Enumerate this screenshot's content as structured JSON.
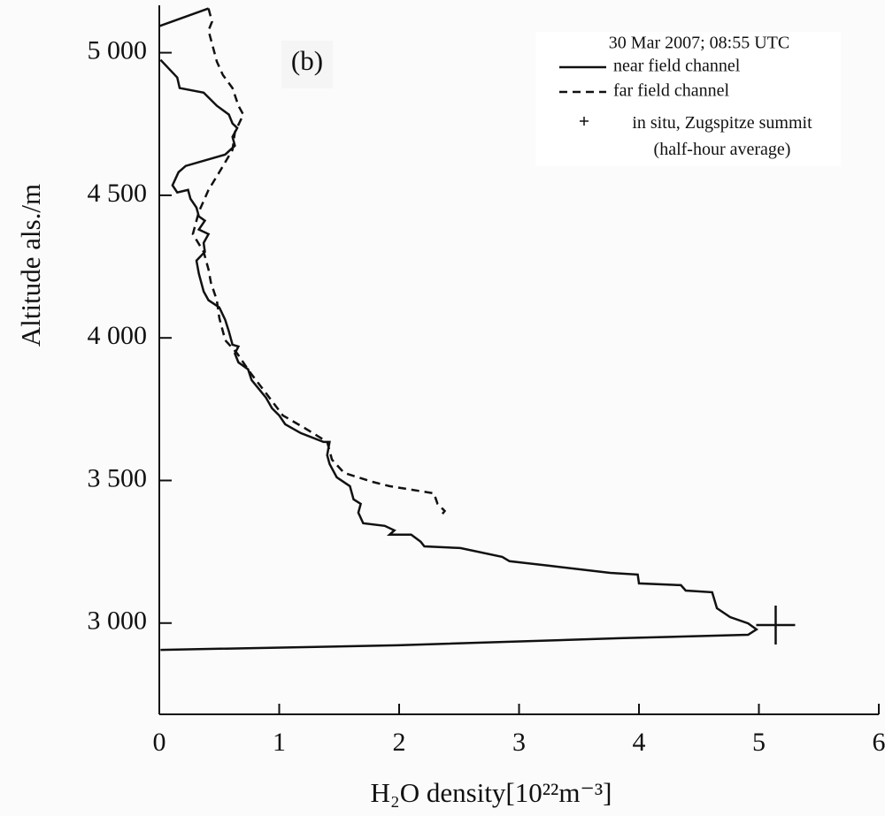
{
  "chart_data": {
    "type": "line",
    "annotation": "(b)",
    "x_label": "H₂O density[10²²m⁻³]",
    "y_label": "Altitude als./m",
    "legend_title": "30 Mar 2007; 08:55 UTC",
    "legend": "top-right",
    "xlim": [
      0,
      6
    ],
    "xticks": [
      0,
      1,
      2,
      3,
      4,
      5,
      6
    ],
    "ylim": [
      2680,
      5160
    ],
    "yticks": [
      {
        "value": 3000,
        "label": "3 000"
      },
      {
        "value": 3500,
        "label": "3 500"
      },
      {
        "value": 4000,
        "label": "4 000"
      },
      {
        "value": 4500,
        "label": "4 500"
      },
      {
        "value": 5000,
        "label": "5 000"
      }
    ],
    "series": [
      {
        "name": "near field channel",
        "color": "#111111",
        "dash": "solid",
        "x": [
          0.41,
          0.0,
          null,
          0.01,
          0.15,
          0.17,
          0.37,
          0.48,
          0.58,
          0.61,
          0.65,
          0.61,
          0.63,
          0.55,
          0.22,
          0.16,
          0.11,
          0.15,
          0.24,
          0.26,
          0.31,
          0.33,
          0.38,
          0.33,
          0.41,
          0.37,
          0.38,
          0.31,
          0.33,
          0.37,
          0.41,
          0.5,
          0.55,
          0.58,
          0.61,
          0.66,
          0.63,
          0.66,
          0.74,
          0.77,
          0.83,
          0.89,
          0.94,
          1.0,
          1.05,
          1.18,
          1.37,
          1.42,
          1.4,
          1.42,
          1.48,
          1.59,
          1.62,
          1.68,
          1.66,
          1.7,
          1.88,
          1.96,
          1.92,
          2.1,
          2.18,
          2.21,
          2.51,
          2.86,
          2.92,
          3.25,
          3.76,
          3.99,
          4.0,
          4.35,
          4.39,
          4.61,
          4.65,
          4.76,
          4.91,
          4.98,
          4.91,
          3.84,
          1.99,
          0.01
        ],
        "y": [
          5155,
          5093,
          null,
          4975,
          4913,
          4876,
          4860,
          4814,
          4783,
          4752,
          4736,
          4705,
          4674,
          4643,
          4603,
          4581,
          4535,
          4510,
          4519,
          4488,
          4457,
          4426,
          4411,
          4380,
          4364,
          4333,
          4302,
          4271,
          4225,
          4163,
          4132,
          4107,
          4063,
          4023,
          3976,
          3970,
          3945,
          3914,
          3890,
          3852,
          3821,
          3790,
          3753,
          3728,
          3697,
          3666,
          3635,
          3635,
          3589,
          3558,
          3511,
          3480,
          3434,
          3418,
          3387,
          3350,
          3341,
          3325,
          3310,
          3310,
          3285,
          3269,
          3263,
          3232,
          3217,
          3201,
          3176,
          3170,
          3139,
          3133,
          3114,
          3108,
          3052,
          3021,
          2999,
          2978,
          2959,
          2947,
          2922,
          2906
        ]
      },
      {
        "name": "far field channel",
        "color": "#111111",
        "dash": "dashed",
        "x": [
          0.41,
          0.44,
          0.41,
          0.48,
          0.53,
          0.61,
          0.66,
          0.7,
          0.63,
          0.61,
          0.5,
          0.41,
          0.33,
          0.28,
          0.37,
          0.41,
          0.43,
          0.48,
          0.5,
          0.55,
          0.65,
          0.75,
          0.89,
          1.03,
          1.22,
          1.4,
          1.44,
          1.54,
          1.77,
          1.92,
          2.29,
          2.32,
          2.38,
          2.34
        ],
        "y": [
          5155,
          5109,
          5078,
          4969,
          4922,
          4876,
          4814,
          4783,
          4721,
          4659,
          4581,
          4519,
          4442,
          4364,
          4302,
          4240,
          4194,
          4132,
          4070,
          3992,
          3945,
          3883,
          3806,
          3728,
          3682,
          3635,
          3573,
          3527,
          3496,
          3480,
          3455,
          3418,
          3393,
          3372
        ]
      }
    ],
    "points": {
      "name": "in situ, Zugspitze summit (half-hour average)",
      "color": "#111111",
      "marker": "+",
      "x": [
        5.14
      ],
      "y": [
        2993
      ]
    }
  }
}
